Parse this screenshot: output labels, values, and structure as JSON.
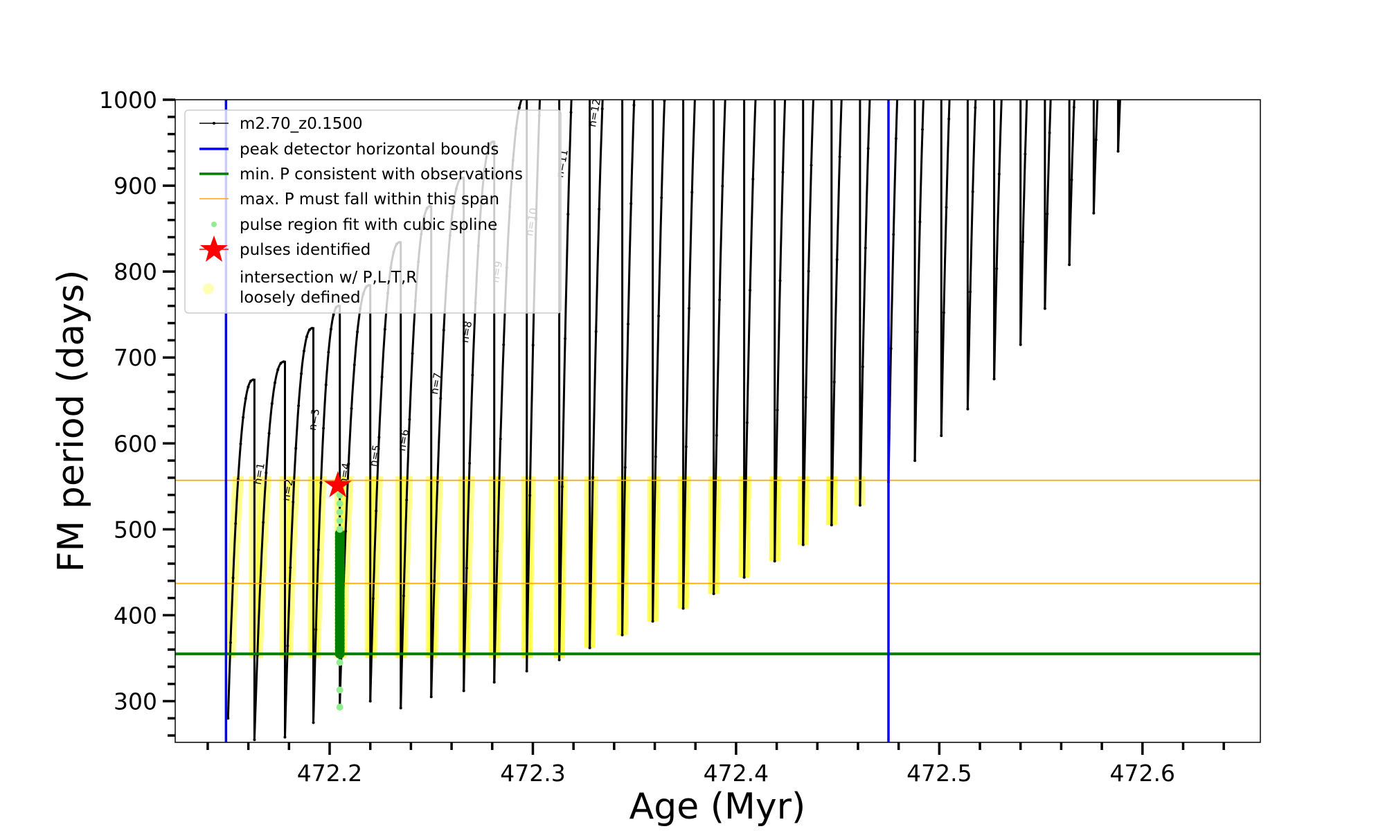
{
  "chart_data": {
    "type": "line",
    "title": "",
    "xlabel": "Age (Myr)",
    "ylabel": "FM period (days)",
    "xlim": [
      472.124,
      472.658
    ],
    "ylim": [
      252,
      1000
    ],
    "xticks": [
      472.2,
      472.3,
      472.4,
      472.5,
      472.6
    ],
    "xtick_labels": [
      "472.2",
      "472.3",
      "472.4",
      "472.5",
      "472.6"
    ],
    "yticks": [
      300,
      400,
      500,
      600,
      700,
      800,
      900,
      1000
    ],
    "ytick_labels": [
      "300",
      "400",
      "500",
      "600",
      "700",
      "800",
      "900",
      "1000"
    ],
    "grid": false,
    "legend_placement": "top-left",
    "legend": [
      {
        "label": "m2.70_z0.1500",
        "marker": "line-dot",
        "color": "#000000"
      },
      {
        "label": "peak detector horizontal bounds",
        "marker": "line",
        "color": "#0000ff"
      },
      {
        "label": "min. P consistent with observations",
        "marker": "line",
        "color": "#008000"
      },
      {
        "label": "max. P must fall within this span",
        "marker": "line",
        "color": "#ffa500"
      },
      {
        "label": "pulse region fit with cubic spline",
        "marker": "dot",
        "color": "#90ee90"
      },
      {
        "label": "pulses identified",
        "marker": "star",
        "color": "#ff0000"
      },
      {
        "label": "intersection w/ P,L,T,R\nloosely defined",
        "label_lines": [
          "intersection w/ P,L,T,R",
          "loosely defined"
        ],
        "marker": "dot",
        "color": "#ffffa0"
      }
    ],
    "series": [
      {
        "name": "m2.70_z0.1500",
        "kind": "thermal pulses (sawtooth)",
        "pulse_drop_ages": [
          472.15,
          472.163,
          472.178,
          472.192,
          472.205,
          472.22,
          472.235,
          472.25,
          472.266,
          472.281,
          472.297,
          472.313,
          472.328,
          472.344,
          472.359,
          472.374,
          472.389,
          472.404,
          472.419,
          472.433,
          472.447,
          472.461,
          472.475,
          472.488,
          472.501,
          472.514,
          472.527,
          472.54,
          472.552,
          472.564,
          472.576,
          472.588
        ],
        "pulse_min_periods": [
          280,
          255,
          258,
          275,
          295,
          300,
          292,
          305,
          312,
          322,
          335,
          348,
          362,
          377,
          393,
          408,
          425,
          444,
          463,
          482,
          505,
          528,
          555,
          580,
          609,
          640,
          675,
          715,
          757,
          808,
          868,
          940
        ],
        "peak_before_drop": [
          null,
          674,
          695,
          734,
          760,
          784,
          834,
          876,
          909,
          951,
          1005,
          null,
          null,
          null,
          null,
          null,
          null,
          null,
          null,
          null,
          null,
          null,
          null,
          null,
          null,
          null,
          null,
          null,
          null,
          null,
          null,
          null
        ]
      }
    ],
    "vlines": [
      {
        "x": 472.149,
        "color": "#0000ff",
        "name": "peak detector horizontal bounds"
      },
      {
        "x": 472.475,
        "color": "#0000ff",
        "name": "peak detector horizontal bounds"
      }
    ],
    "hlines": [
      {
        "y": 355,
        "color": "#008000",
        "name": "min. P consistent with observations"
      },
      {
        "y": 557,
        "color": "#ffa500",
        "name": "max. P upper"
      },
      {
        "y": 437,
        "color": "#ffa500",
        "name": "max. P lower"
      }
    ],
    "intersection_band": {
      "period_min": 355,
      "period_max": 557,
      "age_max": 472.462
    },
    "spline_fit_points": {
      "age": 472.205,
      "dark_range": [
        355,
        495
      ],
      "light_points": [
        293,
        313,
        345,
        500,
        510,
        520,
        530,
        540
      ]
    },
    "pulse_identified": {
      "age": 472.204,
      "period": 551
    },
    "n_labels": [
      {
        "text": "n=1",
        "age": 472.167,
        "period": 564
      },
      {
        "text": "n=2",
        "age": 472.181,
        "period": 545
      },
      {
        "text": "n=3",
        "age": 472.194,
        "period": 627
      },
      {
        "text": "n=4",
        "age": 472.209,
        "period": 564
      },
      {
        "text": "n=5",
        "age": 472.224,
        "period": 585
      },
      {
        "text": "n=6",
        "age": 472.238,
        "period": 603
      },
      {
        "text": "n=7",
        "age": 472.254,
        "period": 669
      },
      {
        "text": "n=8",
        "age": 472.269,
        "period": 729
      },
      {
        "text": "n=9",
        "age": 472.284,
        "period": 799
      },
      {
        "text": "n=10",
        "age": 472.301,
        "period": 857
      },
      {
        "text": "n=11",
        "age": 472.316,
        "period": 925
      },
      {
        "text": "n=12",
        "age": 472.332,
        "period": 984
      }
    ]
  }
}
